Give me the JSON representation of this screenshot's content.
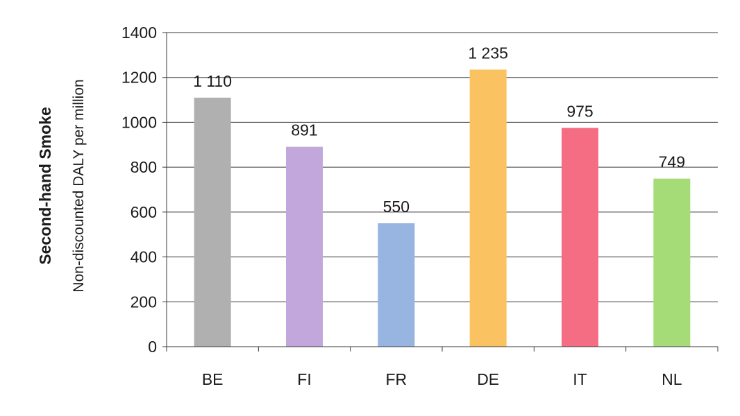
{
  "chart_data": {
    "type": "bar",
    "categories": [
      "BE",
      "FI",
      "FR",
      "DE",
      "IT",
      "NL"
    ],
    "values": [
      1110,
      891,
      550,
      1235,
      975,
      749
    ],
    "data_labels": [
      "1 110",
      "891",
      "550",
      "1 235",
      "975",
      "749"
    ],
    "colors": [
      "#b0b0b0",
      "#c1a7dc",
      "#98b5e1",
      "#fbc262",
      "#f46d82",
      "#a6dc78"
    ],
    "title": "",
    "xlabel": "",
    "ylabel": "Second-hand Smoke",
    "ylabel_sub": "Non-discounted DALY per million",
    "ylim": [
      0,
      1400
    ],
    "yticks": [
      0,
      200,
      400,
      600,
      800,
      1000,
      1200,
      1400
    ],
    "grid": true,
    "legend": "none"
  }
}
